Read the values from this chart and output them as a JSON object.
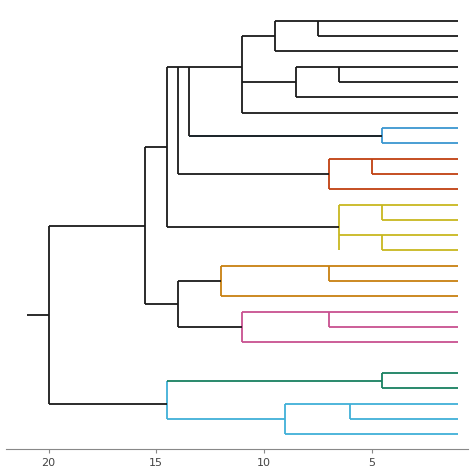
{
  "background_color": "#ffffff",
  "linewidth": 1.3,
  "colors": {
    "black": "#1a1a1a",
    "blue": "#3a96d0",
    "orange_red": "#c04010",
    "yellow": "#c8b820",
    "dark_orange": "#c88010",
    "pink": "#c85090",
    "teal": "#188060",
    "sky_blue": "#40b0d8"
  },
  "axis_ticks": [
    20,
    15,
    10,
    5
  ],
  "axis_tick_labels": [
    "20",
    "15",
    "10",
    "5"
  ],
  "xlim": [
    22.0,
    0.5
  ],
  "ylim": [
    29.0,
    0.0
  ]
}
